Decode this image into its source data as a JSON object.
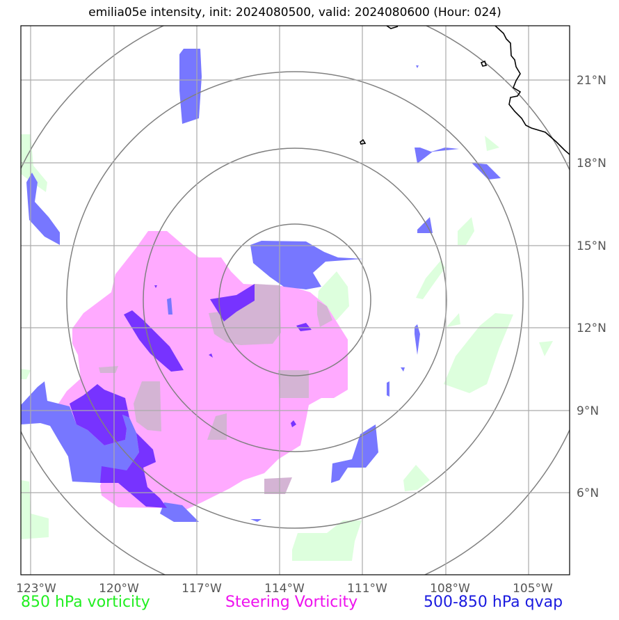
{
  "title": "emilia05e intensity, init: 2024080500, valid: 2024080600 (Hour: 024)",
  "map": {
    "lon_labels": [
      "123°W",
      "120°W",
      "117°W",
      "114°W",
      "111°W",
      "108°W",
      "105°W"
    ],
    "lat_labels": [
      "21°N",
      "18°N",
      "15°N",
      "12°N",
      "9°N",
      "6°N"
    ],
    "range_rings": 4
  },
  "legend": [
    {
      "label": "850 hPa vorticity",
      "color": "#22ee22"
    },
    {
      "label": "Steering Vorticity",
      "color": "#ee11ee"
    },
    {
      "label": "500-850 hPa qvap",
      "color": "#1a1adf"
    }
  ],
  "colors": {
    "vorticity_fill": "#ddffdd",
    "steering_fill": "#ffaaff",
    "qvap_fill": "#7777ff",
    "qvap_strong_fill": "#7733ff",
    "overlap_fill": "#d4b4d4",
    "grid": "#aaaaaa",
    "rings": "#808080",
    "coast": "#000000"
  }
}
